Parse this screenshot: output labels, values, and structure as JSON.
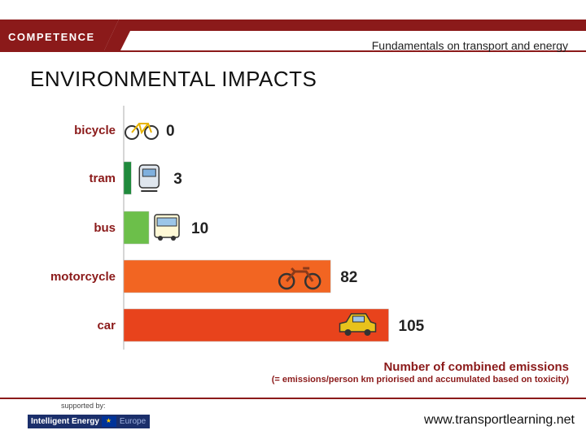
{
  "header": {
    "brand": "COMPETENCE",
    "tagline": "Fundamentals on transport and energy"
  },
  "slide": {
    "title": "ENVIRONMENTAL IMPACTS"
  },
  "chart_data": {
    "type": "bar",
    "orientation": "horizontal",
    "categories": [
      "bicycle",
      "tram",
      "bus",
      "motorcycle",
      "car"
    ],
    "values": [
      0,
      3,
      10,
      82,
      105
    ],
    "value_labels": [
      "0",
      "3",
      "10",
      "82",
      "105"
    ],
    "colors": [
      "#2e8b3a",
      "#1f8a3c",
      "#6cbf4a",
      "#f26522",
      "#e8431c"
    ],
    "icons": [
      "bicycle-icon",
      "tram-icon",
      "bus-icon",
      "motorcycle-icon",
      "car-icon"
    ],
    "xlabel": "Number of combined emissions",
    "xlabel_note": "(= emissions/person km priorised and accumulated based on toxicity)",
    "xlim": [
      0,
      130
    ],
    "grid": false
  },
  "footer": {
    "supported_by": "supported by:",
    "logo_text": "Intelligent Energy",
    "logo_europe": "Europe",
    "website": "www.transportlearning.net"
  },
  "colors": {
    "brand_red": "#8b1a1a",
    "category_label": "#8b1a1a"
  }
}
